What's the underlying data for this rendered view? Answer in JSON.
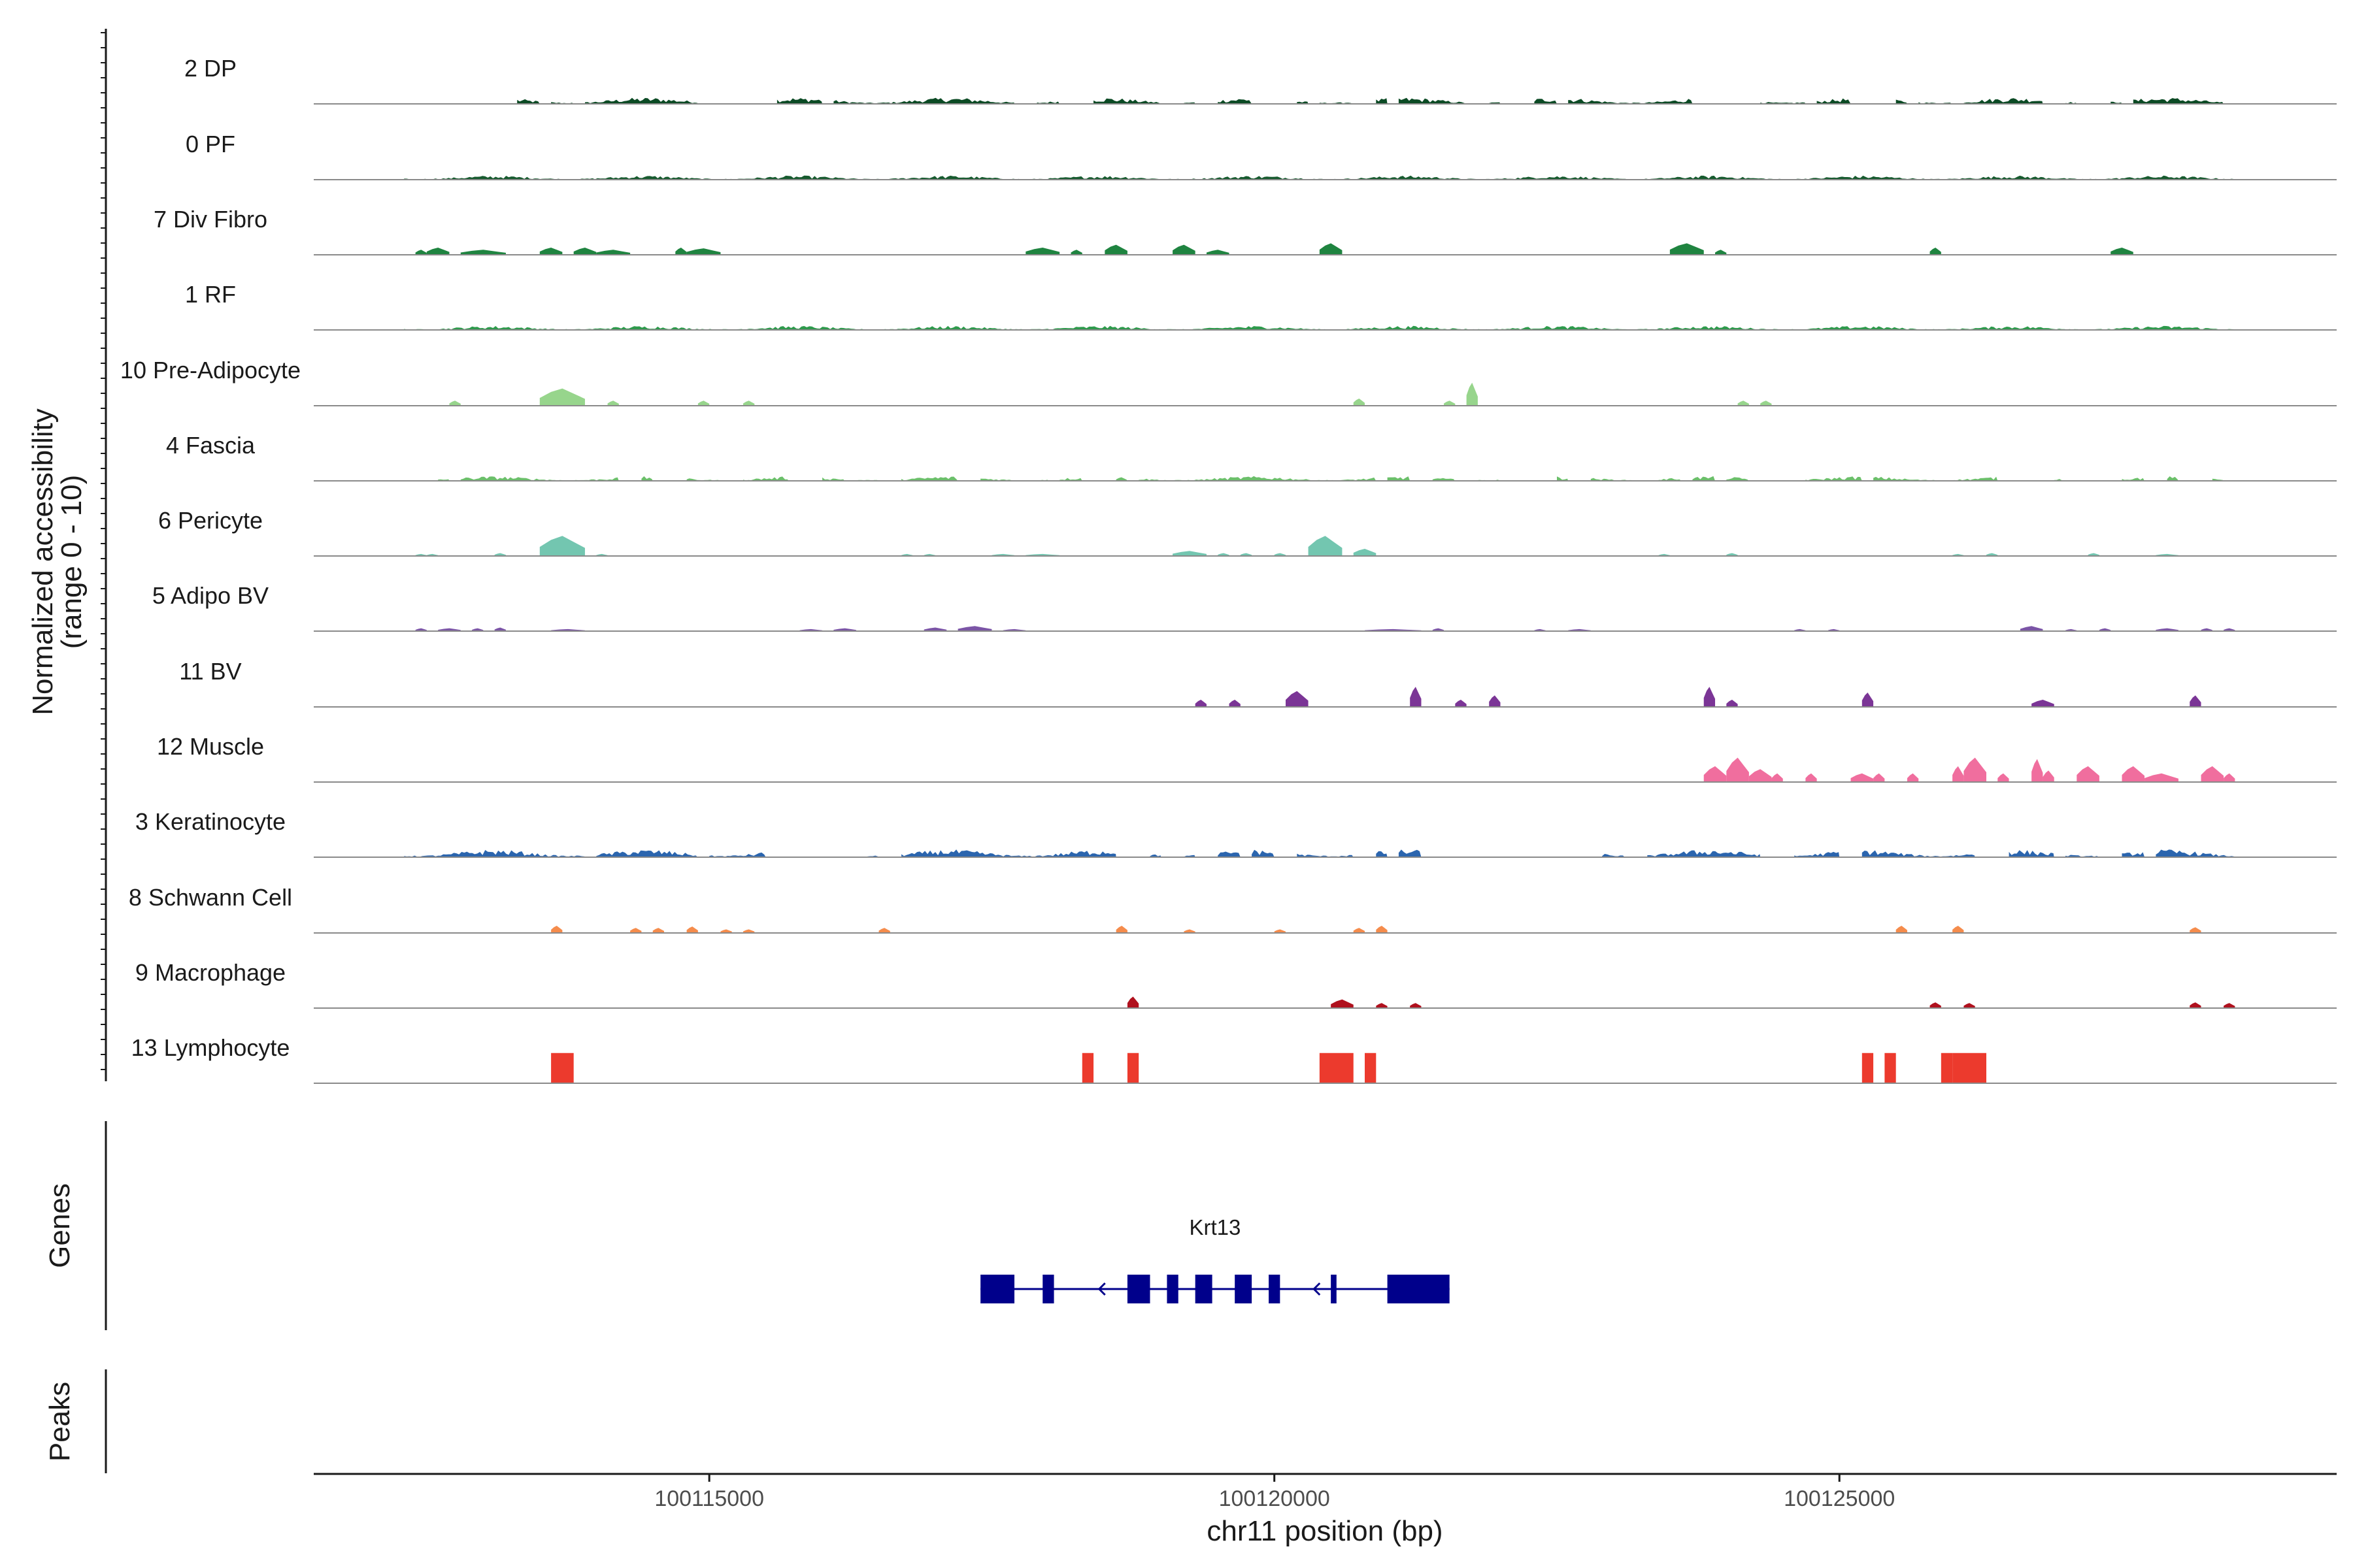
{
  "chart_data": {
    "type": "area",
    "title": "",
    "chromosome": "chr11",
    "xlabel": "chr11 position (bp)",
    "ylabel": "Normalized accessibility",
    "ylabel_sub": "(range 0 - 10)",
    "xlim": [
      100111500,
      100129400
    ],
    "ylim": [
      0,
      10
    ],
    "x_ticks": [
      100115000,
      100120000,
      100125000
    ],
    "x_tick_labels": [
      "100115000",
      "100120000",
      "100125000"
    ],
    "genes_panel_label": "Genes",
    "peaks_panel_label": "Peaks",
    "series": [
      {
        "name": "2 DP",
        "color": "#0b4a24",
        "style": "noisy",
        "amp": 2.5,
        "segments": [
          [
            113300,
            113500
          ],
          [
            113600,
            113800
          ],
          [
            113900,
            114900
          ],
          [
            115600,
            116000
          ],
          [
            116100,
            117700
          ],
          [
            117900,
            118100
          ],
          [
            118400,
            119000
          ],
          [
            119200,
            119300
          ],
          [
            119500,
            119800
          ],
          [
            120200,
            120300
          ],
          [
            120400,
            120700
          ],
          [
            120900,
            121000
          ],
          [
            121100,
            121700
          ],
          [
            121900,
            122000
          ],
          [
            122300,
            122500
          ],
          [
            122600,
            123700
          ],
          [
            124300,
            124700
          ],
          [
            124800,
            125100
          ],
          [
            125500,
            125600
          ],
          [
            125700,
            126000
          ],
          [
            126100,
            126800
          ],
          [
            127000,
            127100
          ],
          [
            127400,
            127500
          ],
          [
            127600,
            128400
          ]
        ]
      },
      {
        "name": "0 PF",
        "color": "#165a2e",
        "style": "noisy",
        "amp": 1.6,
        "segments": [
          [
            112300,
            128500
          ]
        ]
      },
      {
        "name": "7 Div Fibro",
        "color": "#1f8440",
        "style": "peaks",
        "peaks": [
          [
            112400,
            112500,
            3.5
          ],
          [
            112500,
            112700,
            5
          ],
          [
            112800,
            113200,
            3.5
          ],
          [
            113500,
            113700,
            5
          ],
          [
            113800,
            114000,
            5
          ],
          [
            114000,
            114300,
            3.5
          ],
          [
            114700,
            114800,
            5
          ],
          [
            114800,
            115100,
            4.5
          ],
          [
            117800,
            118100,
            5
          ],
          [
            118200,
            118300,
            3.5
          ],
          [
            118500,
            118700,
            7
          ],
          [
            119100,
            119300,
            7
          ],
          [
            119400,
            119600,
            3.5
          ],
          [
            120400,
            120600,
            8
          ],
          [
            123500,
            123800,
            8
          ],
          [
            123900,
            124000,
            3.5
          ],
          [
            125800,
            125900,
            5
          ],
          [
            127400,
            127600,
            5
          ]
        ]
      },
      {
        "name": "1 RF",
        "color": "#2e9a4c",
        "style": "noisy",
        "amp": 1.6,
        "segments": [
          [
            112300,
            128500
          ]
        ]
      },
      {
        "name": "10 Pre-Adipocyte",
        "color": "#97d58c",
        "style": "peaks",
        "peaks": [
          [
            112700,
            112800,
            3.5
          ],
          [
            113500,
            113900,
            12
          ],
          [
            114100,
            114200,
            3.5
          ],
          [
            114900,
            115000,
            3.5
          ],
          [
            115300,
            115400,
            3.5
          ],
          [
            120700,
            120800,
            5
          ],
          [
            121500,
            121600,
            3.5
          ],
          [
            121700,
            121800,
            16
          ],
          [
            124100,
            124200,
            3.5
          ],
          [
            124300,
            124400,
            3.5
          ]
        ]
      },
      {
        "name": "4 Fascia",
        "color": "#6bbf6a",
        "style": "noisy",
        "amp": 1.8,
        "segments": [
          [
            112600,
            112700
          ],
          [
            112800,
            114200
          ],
          [
            114400,
            114500
          ],
          [
            114800,
            115100
          ],
          [
            115300,
            115700
          ],
          [
            116000,
            116200
          ],
          [
            116300,
            116500
          ],
          [
            116700,
            117200
          ],
          [
            117400,
            117700
          ],
          [
            117900,
            118000
          ],
          [
            118100,
            118300
          ],
          [
            118600,
            118700
          ],
          [
            118800,
            120900
          ],
          [
            121000,
            121200
          ],
          [
            121400,
            121600
          ],
          [
            121700,
            122000
          ],
          [
            122500,
            122600
          ],
          [
            122800,
            123200
          ],
          [
            123400,
            123600
          ],
          [
            123700,
            123900
          ],
          [
            124000,
            124200
          ],
          [
            124700,
            125200
          ],
          [
            125300,
            126400
          ],
          [
            126900,
            127000
          ],
          [
            127500,
            127700
          ],
          [
            127900,
            128000
          ],
          [
            128300,
            128400
          ]
        ]
      },
      {
        "name": "6 Pericyte",
        "color": "#73c6b0",
        "style": "peaks",
        "peaks": [
          [
            112400,
            112500,
            1.4
          ],
          [
            112500,
            112600,
            1.4
          ],
          [
            113100,
            113200,
            2
          ],
          [
            113500,
            113900,
            14
          ],
          [
            114000,
            114100,
            1.4
          ],
          [
            116700,
            116800,
            1.4
          ],
          [
            116900,
            117000,
            1.4
          ],
          [
            117500,
            117700,
            1.4
          ],
          [
            117800,
            118100,
            1.4
          ],
          [
            119100,
            119400,
            3.5
          ],
          [
            119500,
            119600,
            2
          ],
          [
            119700,
            119800,
            2
          ],
          [
            120000,
            120100,
            2
          ],
          [
            120300,
            120600,
            14
          ],
          [
            120700,
            120900,
            5
          ],
          [
            123400,
            123500,
            1.4
          ],
          [
            124000,
            124100,
            2
          ],
          [
            126000,
            126100,
            1.4
          ],
          [
            126300,
            126400,
            2
          ],
          [
            127200,
            127300,
            2
          ],
          [
            127800,
            128000,
            1.4
          ]
        ]
      },
      {
        "name": "5 Adipo BV",
        "color": "#7b55a6",
        "style": "peaks",
        "peaks": [
          [
            112400,
            112500,
            2
          ],
          [
            112600,
            112800,
            2
          ],
          [
            112900,
            113000,
            2
          ],
          [
            113100,
            113200,
            2.5
          ],
          [
            113600,
            113900,
            1.4
          ],
          [
            115800,
            116000,
            1.4
          ],
          [
            116100,
            116300,
            2
          ],
          [
            116900,
            117100,
            2.5
          ],
          [
            117200,
            117500,
            3.5
          ],
          [
            117600,
            117800,
            1.4
          ],
          [
            120800,
            121300,
            1.4
          ],
          [
            121400,
            121500,
            2
          ],
          [
            122300,
            122400,
            1.4
          ],
          [
            122600,
            122800,
            1.4
          ],
          [
            124600,
            124700,
            1.4
          ],
          [
            124900,
            125000,
            1.4
          ],
          [
            126600,
            126800,
            3.5
          ],
          [
            127000,
            127100,
            1.4
          ],
          [
            127300,
            127400,
            2
          ],
          [
            127800,
            128000,
            2
          ],
          [
            128200,
            128300,
            2
          ],
          [
            128400,
            128500,
            2
          ]
        ]
      },
      {
        "name": "11 BV",
        "color": "#7b3596",
        "style": "peaks",
        "peaks": [
          [
            119300,
            119400,
            5
          ],
          [
            119600,
            119700,
            5
          ],
          [
            120100,
            120300,
            11
          ],
          [
            121200,
            121300,
            14
          ],
          [
            121600,
            121700,
            5
          ],
          [
            121900,
            122000,
            8
          ],
          [
            123800,
            123900,
            14
          ],
          [
            124000,
            124100,
            5
          ],
          [
            125200,
            125300,
            10
          ],
          [
            126700,
            126900,
            5
          ],
          [
            128100,
            128200,
            8
          ]
        ]
      },
      {
        "name": "12 Muscle",
        "color": "#f06e9e",
        "style": "peaks",
        "peaks": [
          [
            123800,
            124000,
            11
          ],
          [
            124000,
            124200,
            17
          ],
          [
            124200,
            124400,
            9
          ],
          [
            124400,
            124500,
            6
          ],
          [
            124700,
            124800,
            6
          ],
          [
            125100,
            125300,
            6
          ],
          [
            125300,
            125400,
            6
          ],
          [
            125600,
            125700,
            6
          ],
          [
            126000,
            126100,
            11
          ],
          [
            126100,
            126300,
            17
          ],
          [
            126400,
            126500,
            6
          ],
          [
            126700,
            126800,
            16
          ],
          [
            126800,
            126900,
            8
          ],
          [
            127100,
            127300,
            11
          ],
          [
            127500,
            127700,
            11
          ],
          [
            127700,
            128000,
            6
          ],
          [
            128200,
            128400,
            11
          ],
          [
            128400,
            128500,
            6
          ]
        ]
      },
      {
        "name": "3 Keratinocyte",
        "color": "#2b65ae",
        "style": "noisy",
        "amp": 3,
        "segments": [
          [
            112300,
            113900
          ],
          [
            114000,
            114900
          ],
          [
            115000,
            115500
          ],
          [
            116400,
            116500
          ],
          [
            116700,
            118600
          ],
          [
            118900,
            119000
          ],
          [
            119200,
            119300
          ],
          [
            119500,
            119700
          ],
          [
            119800,
            120000
          ],
          [
            120200,
            120700
          ],
          [
            120900,
            121000
          ],
          [
            121100,
            121300
          ],
          [
            122900,
            123100
          ],
          [
            123300,
            124300
          ],
          [
            124600,
            125000
          ],
          [
            125200,
            126200
          ],
          [
            126500,
            126900
          ],
          [
            127000,
            127300
          ],
          [
            127500,
            127700
          ],
          [
            127800,
            128500
          ]
        ]
      },
      {
        "name": "8 Schwann Cell",
        "color": "#f58c4c",
        "style": "peaks",
        "peaks": [
          [
            113600,
            113700,
            5
          ],
          [
            114300,
            114400,
            3.5
          ],
          [
            114500,
            114600,
            3.5
          ],
          [
            114800,
            114900,
            4.5
          ],
          [
            115100,
            115200,
            2.5
          ],
          [
            115300,
            115400,
            2.5
          ],
          [
            116500,
            116600,
            3.5
          ],
          [
            118600,
            118700,
            5
          ],
          [
            119200,
            119300,
            2.5
          ],
          [
            120000,
            120100,
            2.5
          ],
          [
            120700,
            120800,
            3.5
          ],
          [
            120900,
            121000,
            5
          ],
          [
            125500,
            125600,
            5
          ],
          [
            126000,
            126100,
            5
          ],
          [
            128100,
            128200,
            4
          ]
        ]
      },
      {
        "name": "9 Macrophage",
        "color": "#b0111e",
        "style": "peaks",
        "peaks": [
          [
            118700,
            118800,
            8
          ],
          [
            120500,
            120700,
            6
          ],
          [
            120900,
            121000,
            3.5
          ],
          [
            121200,
            121300,
            3.5
          ],
          [
            125800,
            125900,
            4
          ],
          [
            126100,
            126200,
            3.5
          ],
          [
            128100,
            128200,
            4
          ],
          [
            128400,
            128500,
            3.5
          ]
        ]
      },
      {
        "name": "13 Lymphocyte",
        "color": "#ec3a2d",
        "style": "blocks",
        "peaks": [
          [
            113600,
            113800,
            14
          ],
          [
            118300,
            118400,
            14
          ],
          [
            118700,
            118800,
            14
          ],
          [
            120400,
            120700,
            14
          ],
          [
            120800,
            120900,
            14
          ],
          [
            125200,
            125300,
            14
          ],
          [
            125400,
            125500,
            14
          ],
          [
            125900,
            126000,
            14
          ],
          [
            126000,
            126300,
            14
          ]
        ]
      }
    ],
    "gene": {
      "name": "Krt13",
      "strand": "-",
      "color": "#00008b",
      "start": 100117400,
      "end": 100121550,
      "exons": [
        [
          117400,
          117700
        ],
        [
          117950,
          118050
        ],
        [
          118700,
          118900
        ],
        [
          119050,
          119150
        ],
        [
          119300,
          119450
        ],
        [
          119650,
          119800
        ],
        [
          119950,
          120050
        ],
        [
          120500,
          120550
        ],
        [
          121000,
          121550
        ]
      ],
      "strand_arrows": [
        118450,
        120350
      ]
    }
  }
}
